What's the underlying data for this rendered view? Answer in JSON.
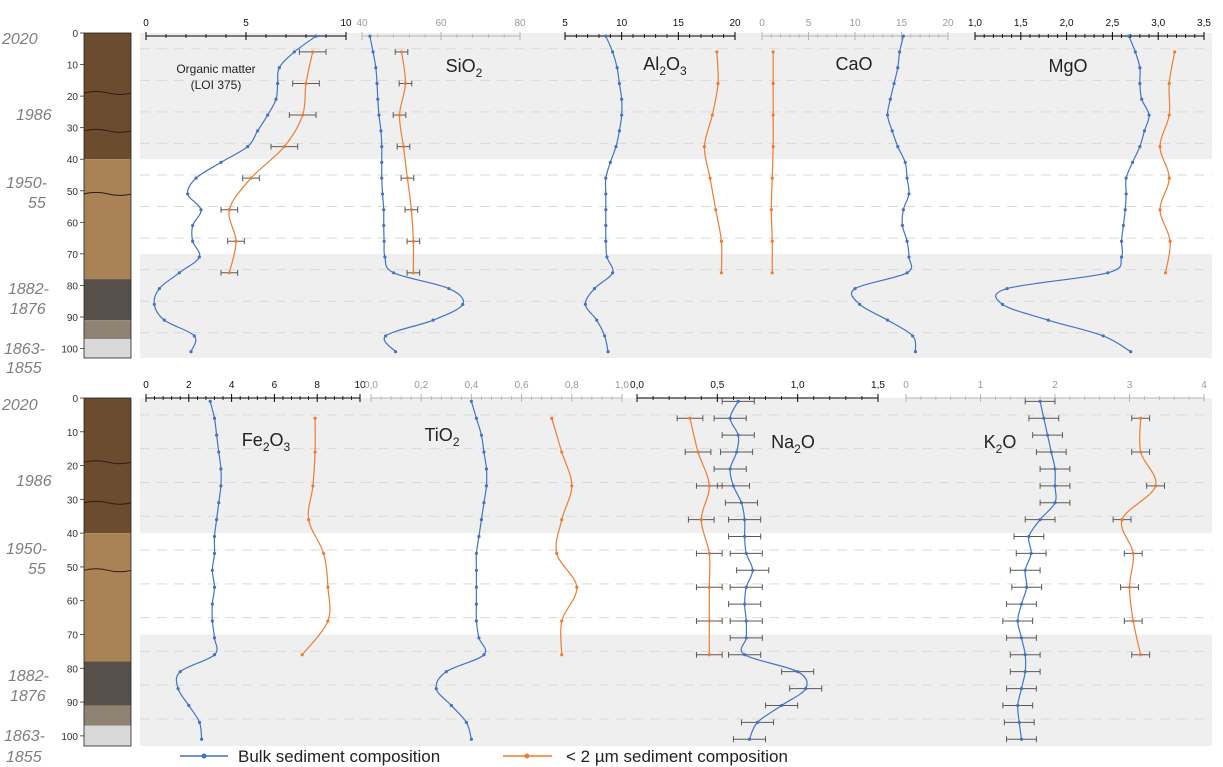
{
  "colors": {
    "bulk": "#4472c4",
    "fine": "#ed7d31",
    "error": "#595959",
    "band": "#efefef",
    "axis_light": "#b4b4b4",
    "axis_dark": "#000000"
  },
  "dates": [
    "2020",
    "1986",
    "1950-",
    "55",
    "1882-",
    "1876",
    "1863-",
    "1855"
  ],
  "depth_ticks": [
    "0",
    "10",
    "20",
    "30",
    "40",
    "50",
    "60",
    "70",
    "80",
    "90",
    "100"
  ],
  "legend": {
    "bulk": "Bulk sediment composition",
    "fine": "< 2 µm sediment composition"
  },
  "chart_data": [
    {
      "type": "line",
      "title": "Organic matter",
      "subtitle": "(LOI 375)",
      "xlim": [
        0,
        12
      ],
      "axis_ticks": [
        "0",
        "5",
        "10"
      ],
      "ylim": [
        0,
        103
      ],
      "series": [
        {
          "name": "Bulk sediment composition",
          "depth": [
            1,
            6,
            11,
            16,
            21,
            26,
            31,
            36,
            41,
            46,
            51,
            56,
            61,
            66,
            71,
            76,
            81,
            86,
            91,
            96,
            101
          ],
          "values": [
            10.2,
            8.9,
            8.0,
            7.9,
            7.8,
            7.3,
            6.7,
            6.1,
            4.5,
            3.0,
            2.5,
            3.3,
            2.8,
            2.8,
            3.2,
            2.0,
            0.8,
            0.5,
            1.1,
            2.9,
            2.7
          ]
        },
        {
          "name": "< 2 µm sediment composition",
          "depth": [
            6,
            16,
            26,
            36,
            46,
            56,
            66,
            76
          ],
          "values": [
            10.0,
            9.6,
            9.4,
            8.3,
            6.3,
            5.0,
            5.4,
            5.0
          ],
          "error": [
            0.8,
            0.8,
            0.8,
            0.8,
            0.5,
            0.5,
            0.5,
            0.5
          ]
        }
      ]
    },
    {
      "type": "line",
      "title": "SiO2",
      "xlim": [
        40,
        80
      ],
      "axis_ticks": [
        "40",
        "60",
        "80"
      ],
      "series": [
        {
          "name": "Bulk sediment composition",
          "depth": [
            1,
            6,
            11,
            16,
            21,
            26,
            31,
            36,
            41,
            46,
            51,
            56,
            61,
            66,
            71,
            76,
            81,
            86,
            91,
            96,
            101
          ],
          "values": [
            42.0,
            42.8,
            43.5,
            43.8,
            44.0,
            44.3,
            44.8,
            45.0,
            45.0,
            45.0,
            45.2,
            45.5,
            45.5,
            45.6,
            45.8,
            48.0,
            62.0,
            65.5,
            58.0,
            46.0,
            48.5
          ]
        },
        {
          "name": "< 2 µm sediment composition",
          "depth": [
            6,
            16,
            26,
            36,
            46,
            56,
            66,
            76
          ],
          "values": [
            50.0,
            51.0,
            49.5,
            50.5,
            51.5,
            52.5,
            53.0,
            53.0
          ],
          "error": [
            1.6,
            1.6,
            1.6,
            1.6,
            1.6,
            1.6,
            1.6,
            1.6
          ]
        }
      ]
    },
    {
      "type": "line",
      "title": "Al2O3",
      "xlim": [
        5,
        20
      ],
      "axis_ticks": [
        "5",
        "10",
        "15",
        "20"
      ],
      "series": [
        {
          "name": "Bulk sediment composition",
          "depth": [
            1,
            6,
            11,
            16,
            21,
            26,
            31,
            36,
            41,
            46,
            51,
            56,
            61,
            66,
            71,
            76,
            81,
            86,
            91,
            96,
            101
          ],
          "values": [
            8.6,
            9.2,
            9.6,
            9.8,
            10.0,
            10.0,
            9.8,
            9.5,
            9.0,
            8.6,
            8.6,
            8.6,
            8.6,
            8.6,
            8.7,
            9.2,
            7.6,
            6.8,
            7.8,
            8.5,
            8.8
          ]
        },
        {
          "name": "< 2 µm sediment composition",
          "depth": [
            6,
            16,
            26,
            36,
            46,
            56,
            66,
            76
          ],
          "values": [
            18.4,
            18.5,
            18.0,
            17.3,
            17.8,
            18.3,
            18.8,
            18.8
          ]
        }
      ]
    },
    {
      "type": "line",
      "title": "CaO",
      "xlim": [
        0,
        20
      ],
      "axis_ticks": [
        "0",
        "5",
        "10",
        "15",
        "20"
      ],
      "series": [
        {
          "name": "Bulk sediment composition",
          "depth": [
            1,
            6,
            11,
            16,
            21,
            26,
            31,
            36,
            41,
            46,
            51,
            56,
            61,
            66,
            71,
            76,
            81,
            86,
            91,
            96,
            101
          ],
          "values": [
            15.2,
            14.8,
            14.6,
            14.2,
            13.8,
            13.5,
            14.0,
            14.6,
            15.4,
            15.6,
            15.8,
            15.2,
            15.1,
            15.6,
            15.8,
            15.6,
            10.0,
            10.5,
            13.5,
            16.2,
            16.5
          ]
        },
        {
          "name": "< 2 µm sediment composition",
          "depth": [
            6,
            16,
            26,
            36,
            46,
            56,
            66,
            76
          ],
          "values": [
            1.2,
            1.2,
            1.2,
            1.2,
            1.1,
            1.0,
            1.1,
            1.1
          ]
        }
      ]
    },
    {
      "type": "line",
      "title": "MgO",
      "xlim": [
        1.0,
        3.5
      ],
      "axis_ticks": [
        "1,0",
        "1,5",
        "2,0",
        "2,5",
        "3,0",
        "3,5"
      ],
      "series": [
        {
          "name": "Bulk sediment composition",
          "depth": [
            1,
            6,
            11,
            16,
            21,
            26,
            31,
            36,
            41,
            46,
            51,
            56,
            61,
            66,
            71,
            76,
            81,
            86,
            91,
            96,
            101
          ],
          "values": [
            2.68,
            2.75,
            2.8,
            2.8,
            2.82,
            2.9,
            2.85,
            2.8,
            2.72,
            2.65,
            2.65,
            2.64,
            2.62,
            2.6,
            2.6,
            2.45,
            1.35,
            1.3,
            1.8,
            2.4,
            2.7
          ]
        },
        {
          "name": "< 2 µm sediment composition",
          "depth": [
            6,
            16,
            26,
            36,
            46,
            56,
            66,
            76
          ],
          "values": [
            3.18,
            3.12,
            3.12,
            3.02,
            3.12,
            3.02,
            3.13,
            3.08
          ]
        }
      ]
    },
    {
      "type": "line",
      "title": "Fe2O3",
      "xlim": [
        0,
        10
      ],
      "axis_ticks": [
        "0",
        "2",
        "4",
        "6",
        "8",
        "10"
      ],
      "series": [
        {
          "name": "Bulk sediment composition",
          "depth": [
            1,
            6,
            11,
            16,
            21,
            26,
            31,
            36,
            41,
            46,
            51,
            56,
            61,
            66,
            71,
            76,
            81,
            86,
            91,
            96,
            101
          ],
          "values": [
            3.0,
            3.2,
            3.3,
            3.4,
            3.5,
            3.5,
            3.4,
            3.3,
            3.2,
            3.2,
            3.1,
            3.2,
            3.1,
            3.1,
            3.2,
            3.2,
            1.6,
            1.5,
            2.0,
            2.5,
            2.6
          ]
        },
        {
          "name": "< 2 µm sediment composition",
          "depth": [
            6,
            16,
            26,
            36,
            46,
            56,
            66,
            76
          ],
          "values": [
            7.9,
            7.9,
            7.8,
            7.6,
            8.3,
            8.5,
            8.5,
            7.3
          ]
        }
      ]
    },
    {
      "type": "line",
      "title": "TiO2",
      "xlim": [
        0.0,
        1.0
      ],
      "axis_ticks": [
        "0,0",
        "0,2",
        "0,4",
        "0,6",
        "0,8",
        "1,0"
      ],
      "series": [
        {
          "name": "Bulk sediment composition",
          "depth": [
            1,
            6,
            11,
            16,
            21,
            26,
            31,
            36,
            41,
            46,
            51,
            56,
            61,
            66,
            71,
            76,
            81,
            86,
            91,
            96,
            101
          ],
          "values": [
            0.4,
            0.42,
            0.44,
            0.45,
            0.46,
            0.46,
            0.45,
            0.44,
            0.43,
            0.42,
            0.42,
            0.42,
            0.42,
            0.42,
            0.43,
            0.45,
            0.3,
            0.26,
            0.32,
            0.38,
            0.4
          ]
        },
        {
          "name": "< 2 µm sediment composition",
          "depth": [
            6,
            16,
            26,
            36,
            46,
            56,
            66,
            76
          ],
          "values": [
            0.72,
            0.76,
            0.8,
            0.76,
            0.74,
            0.82,
            0.76,
            0.76
          ]
        }
      ]
    },
    {
      "type": "line",
      "title": "Na2O",
      "xlim": [
        0.0,
        1.5
      ],
      "axis_ticks": [
        "0,0",
        "0,5",
        "1,0",
        "1,5"
      ],
      "series": [
        {
          "name": "Bulk sediment composition",
          "depth": [
            1,
            6,
            11,
            16,
            21,
            26,
            31,
            36,
            41,
            46,
            51,
            56,
            61,
            66,
            71,
            76,
            81,
            86,
            91,
            96,
            101
          ],
          "values": [
            0.63,
            0.58,
            0.63,
            0.62,
            0.58,
            0.6,
            0.65,
            0.67,
            0.67,
            0.68,
            0.72,
            0.68,
            0.67,
            0.68,
            0.68,
            0.67,
            1.0,
            1.05,
            0.9,
            0.75,
            0.7
          ],
          "error": [
            0.1,
            0.1,
            0.1,
            0.1,
            0.1,
            0.1,
            0.1,
            0.1,
            0.1,
            0.1,
            0.1,
            0.1,
            0.1,
            0.1,
            0.1,
            0.1,
            0.1,
            0.1,
            0.1,
            0.1,
            0.1
          ]
        },
        {
          "name": "< 2 µm sediment composition",
          "depth": [
            6,
            16,
            26,
            36,
            46,
            56,
            66,
            76
          ],
          "values": [
            0.33,
            0.38,
            0.45,
            0.4,
            0.45,
            0.45,
            0.45,
            0.45
          ],
          "error": [
            0.08,
            0.08,
            0.08,
            0.08,
            0.08,
            0.08,
            0.08,
            0.08
          ]
        }
      ]
    },
    {
      "type": "line",
      "title": "K2O",
      "xlim": [
        0,
        4
      ],
      "axis_ticks": [
        "0",
        "1",
        "2",
        "3",
        "4"
      ],
      "series": [
        {
          "name": "Bulk sediment composition",
          "depth": [
            1,
            6,
            11,
            16,
            21,
            26,
            31,
            36,
            41,
            46,
            51,
            56,
            61,
            66,
            71,
            76,
            81,
            86,
            91,
            96,
            101
          ],
          "values": [
            1.8,
            1.85,
            1.9,
            1.95,
            2.0,
            2.0,
            2.0,
            1.8,
            1.65,
            1.68,
            1.6,
            1.62,
            1.55,
            1.5,
            1.55,
            1.6,
            1.6,
            1.55,
            1.5,
            1.52,
            1.55
          ],
          "error": [
            0.2,
            0.2,
            0.2,
            0.2,
            0.2,
            0.2,
            0.2,
            0.2,
            0.2,
            0.2,
            0.2,
            0.2,
            0.2,
            0.2,
            0.2,
            0.2,
            0.2,
            0.2,
            0.2,
            0.2,
            0.2
          ]
        },
        {
          "name": "< 2 µm sediment composition",
          "depth": [
            6,
            16,
            26,
            36,
            46,
            56,
            66,
            76
          ],
          "values": [
            3.15,
            3.15,
            3.35,
            2.9,
            3.05,
            3.0,
            3.05,
            3.15
          ],
          "error": [
            0.12,
            0.12,
            0.12,
            0.12,
            0.12,
            0.12,
            0.12,
            0.12
          ]
        }
      ]
    }
  ]
}
